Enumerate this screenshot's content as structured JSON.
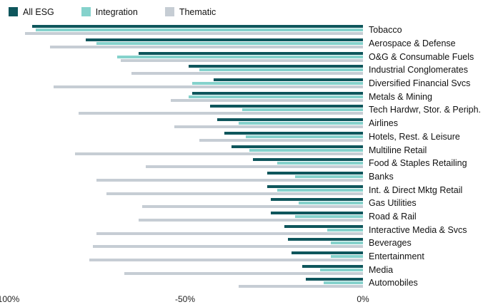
{
  "legend": {
    "items": [
      {
        "label": "All ESG",
        "color": "#0e565c"
      },
      {
        "label": "Integration",
        "color": "#85d2cc"
      },
      {
        "label": "Thematic",
        "color": "#c6cdd4"
      }
    ]
  },
  "axis": {
    "ticks": [
      "-100%",
      "-50%",
      "0%"
    ]
  },
  "chart_data": {
    "type": "bar",
    "orientation": "horizontal",
    "title": "",
    "xlabel": "",
    "ylabel": "",
    "xlim": [
      -100,
      0
    ],
    "x_ticks": [
      "-100%",
      "-50%",
      "0%"
    ],
    "grid": false,
    "legend_position": "top-left",
    "categories": [
      "Tobacco",
      "Aerospace & Defense",
      "O&G & Consumable Fuels",
      "Industrial Conglomerates",
      "Diversified Financial Svcs",
      "Metals & Mining",
      "Tech Hardwr, Stor. & Periph.",
      "Airlines",
      "Hotels, Rest. & Leisure",
      "Multiline Retail",
      "Food & Staples Retailing",
      "Banks",
      "Int. & Direct Mktg Retail",
      "Gas Utilities",
      "Road & Rail",
      "Interactive Media & Svcs",
      "Beverages",
      "Entertainment",
      "Media",
      "Automobiles"
    ],
    "series": [
      {
        "name": "All ESG",
        "color": "#0e565c",
        "values": [
          -93,
          -78,
          -63,
          -49,
          -42,
          -48,
          -43,
          -41,
          -39,
          -37,
          -31,
          -27,
          -27,
          -26,
          -26,
          -22,
          -21,
          -20,
          -17,
          -16
        ]
      },
      {
        "name": "Integration",
        "color": "#85d2cc",
        "values": [
          -92,
          -75,
          -69,
          -46,
          -48,
          -49,
          -34,
          -35,
          -33,
          -32,
          -24,
          -19,
          -24,
          -18,
          -19,
          -10,
          -9,
          -9,
          -12,
          -11
        ]
      },
      {
        "name": "Thematic",
        "color": "#c6cdd4",
        "values": [
          -95,
          -88,
          -68,
          -65,
          -87,
          -54,
          -80,
          -53,
          -46,
          -81,
          -61,
          -75,
          -72,
          -62,
          -63,
          -75,
          -76,
          -77,
          -67,
          -35
        ]
      }
    ]
  }
}
